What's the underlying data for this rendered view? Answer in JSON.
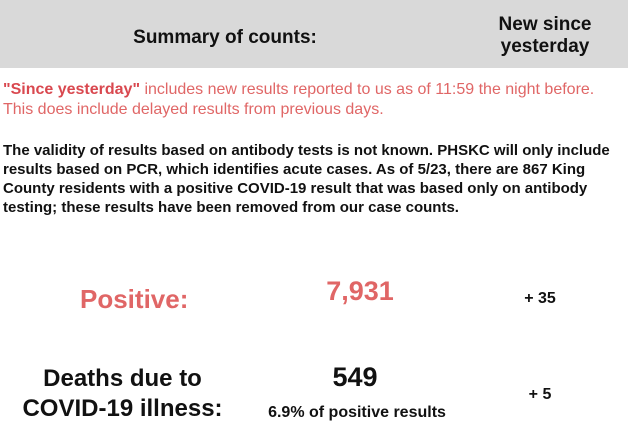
{
  "header": {
    "title": "Summary of counts:",
    "new_since_line1": "New since",
    "new_since_line2": "yesterday"
  },
  "notes": {
    "since_label": "\"Since yesterday\"",
    "since_text": " includes new results reported to us as of 11:59 the night before. This does include delayed results from previous days.",
    "validity_text": "The validity of results based on antibody tests is not known. PHSKC will only include results based on PCR, which identifies acute cases. As of 5/23, there are 867 King County residents with a positive COVID-19 result that was based only on antibody testing; these results have been removed from our case counts."
  },
  "positive": {
    "label": "Positive:",
    "value": "7,931",
    "new": "+ 35"
  },
  "deaths": {
    "label_line1": "Deaths due to",
    "label_line2": "COVID-19 illness:",
    "value": "549",
    "percent_text": "6.9% of positive results",
    "new": "+ 5"
  },
  "colors": {
    "accent_red": "#e06666",
    "header_bg": "#d9d9d9"
  }
}
